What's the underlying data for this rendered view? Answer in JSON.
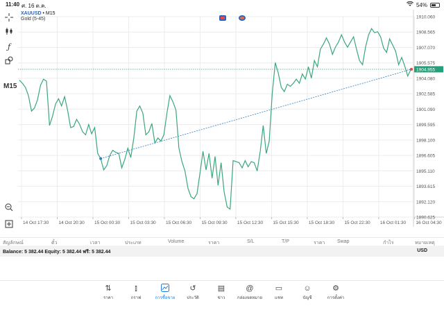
{
  "status": {
    "time": "11:40",
    "date": "ศ. 16 ต.ค.",
    "wifi_icon": "wifi-icon",
    "battery_pct": "54%",
    "battery_level": 0.54
  },
  "chart": {
    "symbol": "XAUUSD",
    "symbol_suffix": " • M15",
    "subtitle": "Gold (5-45)",
    "timeframe": "M15",
    "current_price": "1904.955",
    "colors": {
      "line": "#3aa67b",
      "trend": "#2b7fc2",
      "price_tag": "#24a07a",
      "grid": "#ececec",
      "hline": "#5bbf95"
    }
  },
  "chart_data": {
    "type": "line",
    "title": "XAUUSD • M15",
    "subtitle": "Gold (5-45)",
    "x_tick_labels": [
      "14 Oct 17:30",
      "14 Oct 20:30",
      "15 Oct 00:30",
      "15 Oct 03:30",
      "15 Oct 06:30",
      "15 Oct 09:30",
      "15 Oct 12:30",
      "15 Oct 15:30",
      "15 Oct 18:30",
      "15 Oct 22:30",
      "16 Oct 01:30",
      "16 Oct 04:30"
    ],
    "y_tick_labels": [
      "1910.060",
      "1908.565",
      "1907.070",
      "1905.575",
      "1904.080",
      "1902.585",
      "1901.090",
      "1899.595",
      "1898.100",
      "1896.605",
      "1895.110",
      "1893.615",
      "1892.120",
      "1890.625"
    ],
    "ylim": [
      1890.625,
      1910.06
    ],
    "grid": true,
    "current_price_line": 1904.955,
    "trendline": {
      "from": 1896.3,
      "to": 1904.955
    },
    "series": [
      {
        "values": [
          1903.9,
          1903.6,
          1903.2,
          1902.4,
          1900.9,
          1901.2,
          1902.0,
          1903.4,
          1904.0,
          1903.8,
          1899.5,
          1900.4,
          1901.6,
          1902.1,
          1901.4,
          1902.3,
          1901.0,
          1899.3,
          1899.4,
          1900.1,
          1899.6,
          1898.9,
          1898.6,
          1899.6,
          1898.7,
          1899.3,
          1896.8,
          1896.3,
          1895.2,
          1895.6,
          1896.6,
          1897.1,
          1896.9,
          1896.8,
          1895.4,
          1896.2,
          1897.3,
          1896.4,
          1898.3,
          1900.9,
          1901.4,
          1900.7,
          1898.6,
          1898.9,
          1899.7,
          1897.8,
          1898.3,
          1898.0,
          1898.6,
          1900.7,
          1902.4,
          1901.8,
          1901.0,
          1897.3,
          1896.0,
          1895.1,
          1893.4,
          1892.6,
          1892.4,
          1892.9,
          1894.9,
          1897.0,
          1895.2,
          1896.8,
          1894.4,
          1896.5,
          1893.7,
          1895.9,
          1893.1,
          1891.6,
          1891.4,
          1896.1,
          1896.0,
          1895.9,
          1895.4,
          1896.1,
          1895.5,
          1896.0,
          1895.9,
          1895.1,
          1897.0,
          1899.5,
          1896.8,
          1898.0,
          1902.6,
          1905.6,
          1904.6,
          1903.2,
          1902.8,
          1903.5,
          1903.3,
          1903.6,
          1904.0,
          1903.6,
          1904.5,
          1904.0,
          1905.2,
          1904.1,
          1905.8,
          1905.2,
          1906.9,
          1907.4,
          1908.0,
          1907.4,
          1906.4,
          1907.1,
          1907.6,
          1908.3,
          1907.6,
          1907.1,
          1907.6,
          1908.1,
          1906.9,
          1905.8,
          1905.4,
          1907.1,
          1908.3,
          1908.9,
          1908.5,
          1908.6,
          1908.1,
          1907.0,
          1906.6,
          1907.9,
          1907.3,
          1906.7,
          1905.4,
          1906.1,
          1905.3,
          1904.3,
          1904.9
        ]
      }
    ]
  },
  "table_header": [
    "สัญลักษณ์",
    "ตั๋ว",
    "เวลา",
    "ประเภท",
    "Volume",
    "ราคา",
    "S/L",
    "T/P",
    "ราคา",
    "Swap",
    "กำไร",
    "หมายเหตุ"
  ],
  "account": {
    "summary": "Balance: 5 382.44 Equity: 5 382.44 ฟรี: 5 382.44",
    "currency": "USD"
  },
  "tabs": [
    {
      "label": "ราคา",
      "icon": "quotes-icon"
    },
    {
      "label": "กราฟ",
      "icon": "candles-icon"
    },
    {
      "label": "การซื้อขาย",
      "icon": "trade-icon"
    },
    {
      "label": "ประวัติ",
      "icon": "history-icon"
    },
    {
      "label": "ข่าว",
      "icon": "news-icon"
    },
    {
      "label": "กล่องจดหมาย",
      "icon": "mail-icon"
    },
    {
      "label": "แชท",
      "icon": "chat-icon"
    },
    {
      "label": "บัญชี",
      "icon": "account-icon"
    },
    {
      "label": "การตั้งค่า",
      "icon": "settings-icon"
    }
  ],
  "toolbar_icons": [
    "crosshair-icon",
    "indicators-icon",
    "function-icon",
    "objects-icon",
    "zoom-icon",
    "add-chart-icon"
  ]
}
